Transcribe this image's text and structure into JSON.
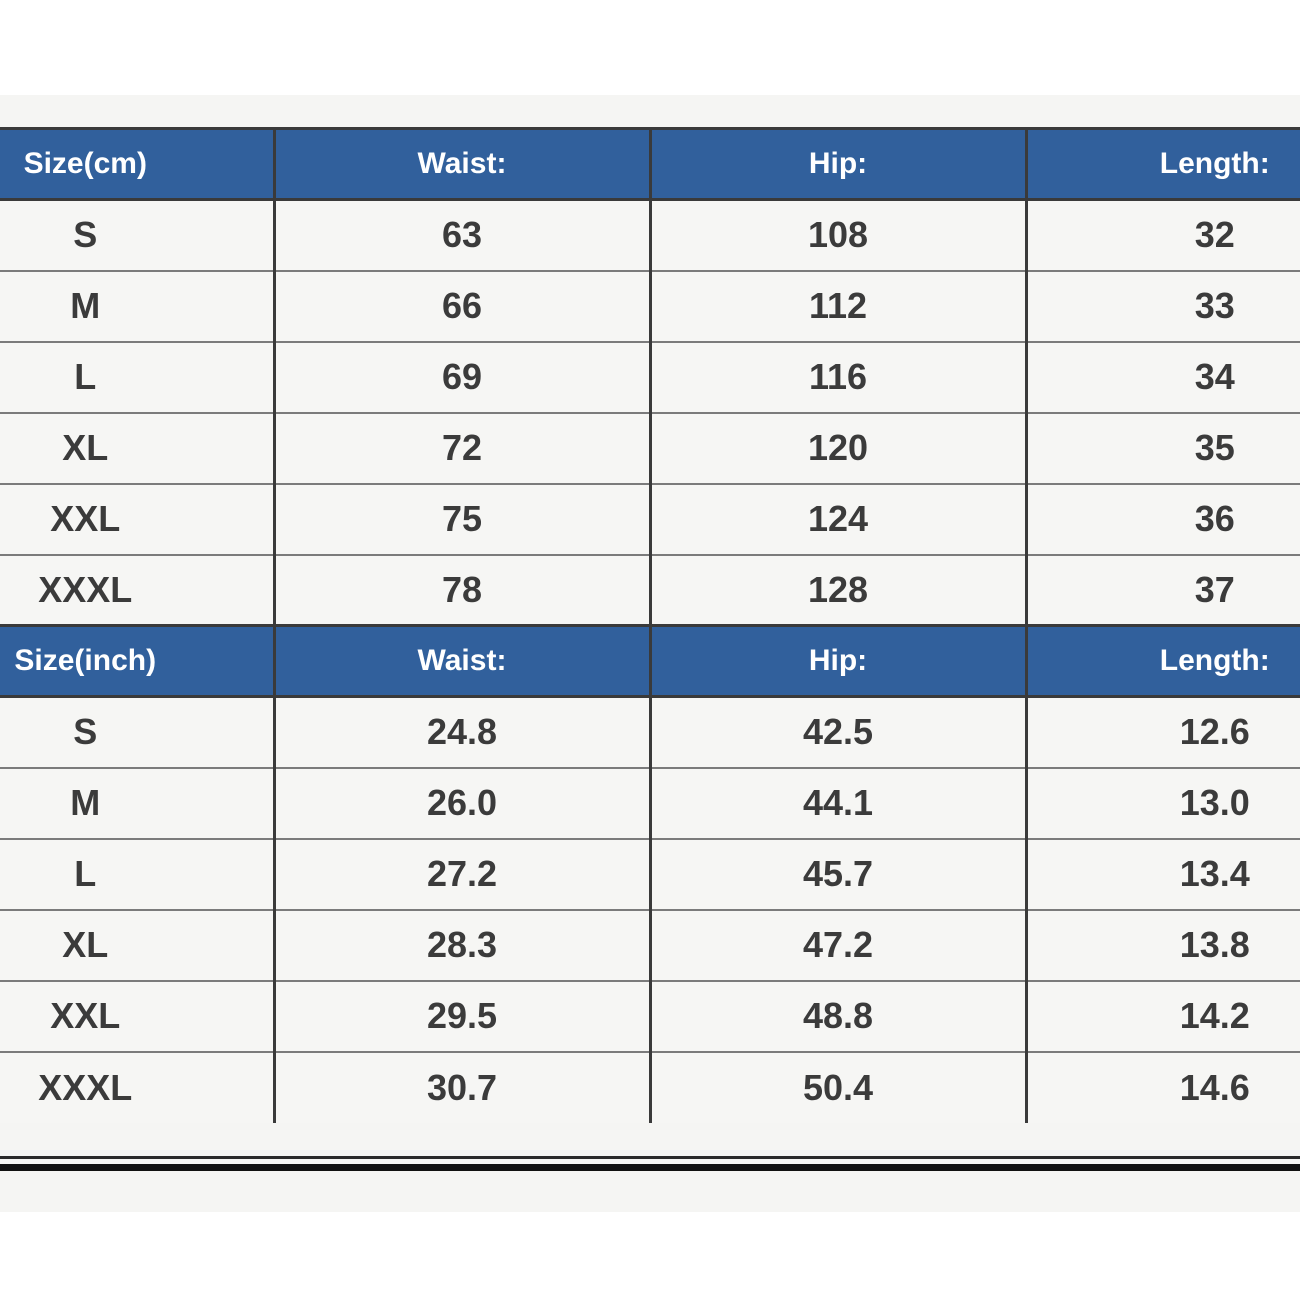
{
  "page": {
    "background": "#ffffff",
    "panel_background": "#f5f5f3"
  },
  "colors": {
    "header_bg": "#31609c",
    "header_text": "#ffffff",
    "body_text": "#3b3b3b",
    "row_divider": "#7b7b7b",
    "dark_divider": "#3a3a3a",
    "bottom_rule": "#111111"
  },
  "size_chart": {
    "cm": {
      "header": {
        "size": "Size(cm)",
        "waist": "Waist:",
        "hip": "Hip:",
        "length": "Length:"
      },
      "rows": [
        {
          "size": "S",
          "waist": "63",
          "hip": "108",
          "length": "32"
        },
        {
          "size": "M",
          "waist": "66",
          "hip": "112",
          "length": "33"
        },
        {
          "size": "L",
          "waist": "69",
          "hip": "116",
          "length": "34"
        },
        {
          "size": "XL",
          "waist": "72",
          "hip": "120",
          "length": "35"
        },
        {
          "size": "XXL",
          "waist": "75",
          "hip": "124",
          "length": "36"
        },
        {
          "size": "XXXL",
          "waist": "78",
          "hip": "128",
          "length": "37"
        }
      ]
    },
    "inch": {
      "header": {
        "size": "Size(inch)",
        "waist": "Waist:",
        "hip": "Hip:",
        "length": "Length:"
      },
      "rows": [
        {
          "size": "S",
          "waist": "24.8",
          "hip": "42.5",
          "length": "12.6"
        },
        {
          "size": "M",
          "waist": "26.0",
          "hip": "44.1",
          "length": "13.0"
        },
        {
          "size": "L",
          "waist": "27.2",
          "hip": "45.7",
          "length": "13.4"
        },
        {
          "size": "XL",
          "waist": "28.3",
          "hip": "47.2",
          "length": "13.8"
        },
        {
          "size": "XXL",
          "waist": "29.5",
          "hip": "48.8",
          "length": "14.2"
        },
        {
          "size": "XXXL",
          "waist": "30.7",
          "hip": "50.4",
          "length": "14.6"
        }
      ]
    }
  },
  "chart_data": [
    {
      "type": "table",
      "title": "Size(cm)",
      "columns": [
        "Size(cm)",
        "Waist:",
        "Hip:",
        "Length:"
      ],
      "rows": [
        [
          "S",
          63,
          108,
          32
        ],
        [
          "M",
          66,
          112,
          33
        ],
        [
          "L",
          69,
          116,
          34
        ],
        [
          "XL",
          72,
          120,
          35
        ],
        [
          "XXL",
          75,
          124,
          36
        ],
        [
          "XXXL",
          78,
          128,
          37
        ]
      ]
    },
    {
      "type": "table",
      "title": "Size(inch)",
      "columns": [
        "Size(inch)",
        "Waist:",
        "Hip:",
        "Length:"
      ],
      "rows": [
        [
          "S",
          24.8,
          42.5,
          12.6
        ],
        [
          "M",
          26.0,
          44.1,
          13.0
        ],
        [
          "L",
          27.2,
          45.7,
          13.4
        ],
        [
          "XL",
          28.3,
          47.2,
          13.8
        ],
        [
          "XXL",
          29.5,
          48.8,
          14.2
        ],
        [
          "XXXL",
          30.7,
          50.4,
          14.6
        ]
      ]
    }
  ]
}
